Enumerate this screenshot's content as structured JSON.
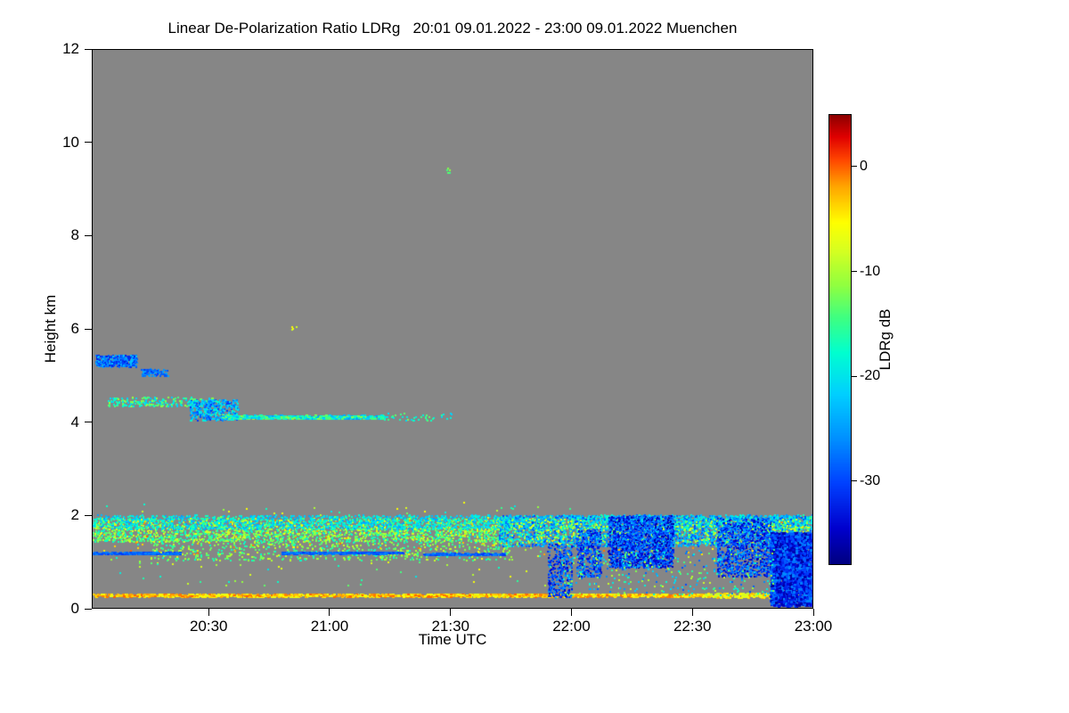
{
  "figure": {
    "title": "Linear De-Polarization Ratio LDRg   20:01 09.01.2022 - 23:00 09.01.2022 Muenchen",
    "xlabel": "Time UTC",
    "ylabel": "Height km",
    "colorbar_label": "LDRg dB"
  },
  "chart_data": {
    "type": "heatmap",
    "title": "Linear De-Polarization Ratio LDRg   20:01 09.01.2022 - 23:00 09.01.2022 Muenchen",
    "xlabel": "Time UTC",
    "ylabel": "Height km",
    "x_range_hours": [
      20.0167,
      23.0
    ],
    "y_range_km": [
      0,
      12
    ],
    "x_ticks": [
      {
        "t": 20.5,
        "label": "20:30"
      },
      {
        "t": 21.0,
        "label": "21:00"
      },
      {
        "t": 21.5,
        "label": "21:30"
      },
      {
        "t": 22.0,
        "label": "22:00"
      },
      {
        "t": 22.5,
        "label": "22:30"
      },
      {
        "t": 23.0,
        "label": "23:00"
      }
    ],
    "y_ticks": [
      {
        "v": 0,
        "label": "0"
      },
      {
        "v": 2,
        "label": "2"
      },
      {
        "v": 4,
        "label": "4"
      },
      {
        "v": 6,
        "label": "6"
      },
      {
        "v": 8,
        "label": "8"
      },
      {
        "v": 10,
        "label": "10"
      },
      {
        "v": 12,
        "label": "12"
      }
    ],
    "background_color": "#868686",
    "background_meaning": "no signal / below detection",
    "colorbar": {
      "label": "LDRg dB",
      "value_range_db": {
        "min": -38,
        "max": 5
      },
      "ticks": [
        {
          "v": 0,
          "label": "0"
        },
        {
          "v": -10,
          "label": "-10"
        },
        {
          "v": -20,
          "label": "-20"
        },
        {
          "v": -30,
          "label": "-30"
        }
      ],
      "stops": [
        {
          "t": 0.0,
          "color": "#000080"
        },
        {
          "t": 0.08,
          "color": "#0000cd"
        },
        {
          "t": 0.18,
          "color": "#0040ff"
        },
        {
          "t": 0.28,
          "color": "#0090ff"
        },
        {
          "t": 0.38,
          "color": "#00d0ff"
        },
        {
          "t": 0.47,
          "color": "#00ffd0"
        },
        {
          "t": 0.55,
          "color": "#40ff80"
        },
        {
          "t": 0.62,
          "color": "#90ff40"
        },
        {
          "t": 0.7,
          "color": "#d8ff20"
        },
        {
          "t": 0.76,
          "color": "#ffff00"
        },
        {
          "t": 0.84,
          "color": "#ffa500"
        },
        {
          "t": 0.9,
          "color": "#ff4500"
        },
        {
          "t": 0.95,
          "color": "#e00000"
        },
        {
          "t": 1.0,
          "color": "#8b0000"
        }
      ]
    },
    "features": [
      {
        "name": "surface-echo-line",
        "shape": "hline",
        "t0": 20.02,
        "t1": 22.55,
        "h": 0.3,
        "jitter": 0.03,
        "n": 1600,
        "vmin": -7,
        "vmax": 0,
        "size": 2
      },
      {
        "name": "surface-echo-line-late",
        "shape": "hline",
        "t0": 22.55,
        "t1": 23.0,
        "h": 0.3,
        "jitter": 0.05,
        "n": 260,
        "vmin": -10,
        "vmax": -2,
        "size": 2
      },
      {
        "name": "bl-band-yellow-green",
        "shape": "scatter",
        "t0": 20.02,
        "t1": 21.75,
        "h0": 1.45,
        "h1": 1.95,
        "n": 2600,
        "vmin": -19,
        "vmax": -7,
        "size": 2
      },
      {
        "name": "bl-band-cyan-top",
        "shape": "scatter",
        "t0": 20.02,
        "t1": 23.0,
        "h0": 1.72,
        "h1": 2.02,
        "n": 2200,
        "vmin": -25,
        "vmax": -16,
        "size": 2
      },
      {
        "name": "bl-band-sparse-low",
        "shape": "scatter",
        "t0": 20.25,
        "t1": 21.75,
        "h0": 1.05,
        "h1": 1.5,
        "n": 700,
        "vmin": -18,
        "vmax": -8,
        "size": 2
      },
      {
        "name": "bl-band-red-specks",
        "shape": "scatter",
        "t0": 20.02,
        "t1": 23.0,
        "h0": 1.15,
        "h1": 1.95,
        "n": 130,
        "vmin": -6,
        "vmax": 0,
        "size": 2
      },
      {
        "name": "bl-band-late-cyan-blue",
        "shape": "scatter",
        "t0": 21.7,
        "t1": 23.0,
        "h0": 1.35,
        "h1": 2.02,
        "n": 3200,
        "vmin": -30,
        "vmax": -16,
        "size": 2
      },
      {
        "name": "bl-band-late-yellow",
        "shape": "scatter",
        "t0": 21.75,
        "t1": 23.0,
        "h0": 1.4,
        "h1": 1.95,
        "n": 550,
        "vmin": -14,
        "vmax": -7,
        "size": 2
      },
      {
        "name": "blue-streak-1",
        "shape": "hline",
        "t0": 20.02,
        "t1": 20.38,
        "h": 1.2,
        "jitter": 0.02,
        "n": 240,
        "vmin": -31,
        "vmax": -26,
        "size": 2
      },
      {
        "name": "blue-streak-2",
        "shape": "hline",
        "t0": 20.8,
        "t1": 21.3,
        "h": 1.21,
        "jitter": 0.02,
        "n": 300,
        "vmin": -31,
        "vmax": -26,
        "size": 2
      },
      {
        "name": "blue-streak-3",
        "shape": "hline",
        "t0": 21.38,
        "t1": 21.72,
        "h": 1.18,
        "jitter": 0.02,
        "n": 200,
        "vmin": -31,
        "vmax": -26,
        "size": 2
      },
      {
        "name": "cloud-5km-main",
        "shape": "scatter",
        "t0": 20.03,
        "t1": 20.2,
        "h0": 5.2,
        "h1": 5.45,
        "n": 420,
        "vmin": -33,
        "vmax": -22,
        "size": 2
      },
      {
        "name": "cloud-5km-tail",
        "shape": "scatter",
        "t0": 20.22,
        "t1": 20.33,
        "h0": 5.0,
        "h1": 5.15,
        "n": 110,
        "vmin": -31,
        "vmax": -24,
        "size": 2
      },
      {
        "name": "layer-4km-upper-dashes",
        "shape": "scatter",
        "t0": 20.08,
        "t1": 20.52,
        "h0": 4.35,
        "h1": 4.55,
        "n": 240,
        "vmin": -23,
        "vmax": -10,
        "size": 2
      },
      {
        "name": "layer-4km-slant",
        "shape": "scatter",
        "t0": 20.42,
        "t1": 20.62,
        "h0": 4.05,
        "h1": 4.5,
        "n": 420,
        "vmin": -31,
        "vmax": -17,
        "size": 2
      },
      {
        "name": "layer-4km-line",
        "shape": "hline",
        "t0": 20.55,
        "t1": 21.22,
        "h": 4.12,
        "jitter": 0.04,
        "n": 520,
        "vmin": -25,
        "vmax": -11,
        "size": 2
      },
      {
        "name": "layer-4km-sparse-tail",
        "shape": "scatter",
        "t0": 21.22,
        "t1": 21.5,
        "h0": 4.05,
        "h1": 4.2,
        "n": 40,
        "vmin": -22,
        "vmax": -12,
        "size": 2
      },
      {
        "name": "speck-9km",
        "shape": "scatter",
        "t0": 21.47,
        "t1": 21.5,
        "h0": 9.35,
        "h1": 9.45,
        "n": 5,
        "vmin": -15,
        "vmax": -11,
        "size": 2
      },
      {
        "name": "speck-6km",
        "shape": "scatter",
        "t0": 20.84,
        "t1": 20.86,
        "h0": 6.0,
        "h1": 6.1,
        "n": 4,
        "vmin": -9,
        "vmax": -5,
        "size": 2
      },
      {
        "name": "late-blue-streaks-a",
        "shape": "scatter",
        "t0": 21.9,
        "t1": 22.0,
        "h0": 0.25,
        "h1": 1.4,
        "n": 380,
        "vmin": -35,
        "vmax": -25,
        "size": 2
      },
      {
        "name": "late-blue-streaks-b",
        "shape": "scatter",
        "t0": 22.02,
        "t1": 22.12,
        "h0": 0.7,
        "h1": 1.7,
        "n": 420,
        "vmin": -35,
        "vmax": -25,
        "size": 2
      },
      {
        "name": "late-blue-blob-1",
        "shape": "scatter",
        "t0": 22.15,
        "t1": 22.42,
        "h0": 0.9,
        "h1": 2.0,
        "n": 2000,
        "vmin": -37,
        "vmax": -24,
        "size": 2
      },
      {
        "name": "late-blue-blob-2",
        "shape": "scatter",
        "t0": 22.6,
        "t1": 22.82,
        "h0": 0.7,
        "h1": 1.95,
        "n": 1100,
        "vmin": -36,
        "vmax": -24,
        "size": 2
      },
      {
        "name": "late-blue-blob-3",
        "shape": "scatter",
        "t0": 22.82,
        "t1": 23.0,
        "h0": 0.08,
        "h1": 1.65,
        "n": 2400,
        "vmin": -37,
        "vmax": -26,
        "size": 3
      },
      {
        "name": "late-scatter-mixed",
        "shape": "scatter",
        "t0": 21.95,
        "t1": 22.85,
        "h0": 0.3,
        "h1": 1.3,
        "n": 350,
        "vmin": -30,
        "vmax": -8,
        "size": 2
      },
      {
        "name": "ambient-specks",
        "shape": "scatter",
        "t0": 20.05,
        "t1": 22.0,
        "h0": 0.5,
        "h1": 2.3,
        "n": 150,
        "vmin": -20,
        "vmax": -5,
        "size": 2
      }
    ]
  }
}
